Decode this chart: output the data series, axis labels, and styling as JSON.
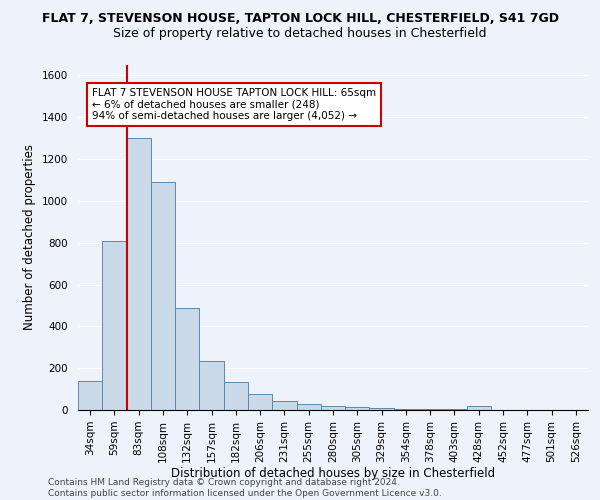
{
  "title_line1": "FLAT 7, STEVENSON HOUSE, TAPTON LOCK HILL, CHESTERFIELD, S41 7GD",
  "title_line2": "Size of property relative to detached houses in Chesterfield",
  "xlabel": "Distribution of detached houses by size in Chesterfield",
  "ylabel": "Number of detached properties",
  "footnote": "Contains HM Land Registry data © Crown copyright and database right 2024.\nContains public sector information licensed under the Open Government Licence v3.0.",
  "categories": [
    "34sqm",
    "59sqm",
    "83sqm",
    "108sqm",
    "132sqm",
    "157sqm",
    "182sqm",
    "206sqm",
    "231sqm",
    "255sqm",
    "280sqm",
    "305sqm",
    "329sqm",
    "354sqm",
    "378sqm",
    "403sqm",
    "428sqm",
    "452sqm",
    "477sqm",
    "501sqm",
    "526sqm"
  ],
  "values": [
    140,
    810,
    1300,
    1090,
    490,
    235,
    135,
    75,
    45,
    30,
    20,
    15,
    10,
    5,
    5,
    5,
    20,
    0,
    0,
    0,
    0
  ],
  "bar_color": "#c9d9e8",
  "bar_edge_color": "#5a8ab0",
  "red_line_x": 1.5,
  "red_line_color": "#cc0000",
  "annotation_text": "FLAT 7 STEVENSON HOUSE TAPTON LOCK HILL: 65sqm\n← 6% of detached houses are smaller (248)\n94% of semi-detached houses are larger (4,052) →",
  "annotation_box_color": "#ffffff",
  "annotation_box_edge": "#cc0000",
  "ylim": [
    0,
    1650
  ],
  "yticks": [
    0,
    200,
    400,
    600,
    800,
    1000,
    1200,
    1400,
    1600
  ],
  "background_color": "#eef2fa",
  "grid_color": "#ffffff",
  "title_fontsize": 9,
  "subtitle_fontsize": 9,
  "axis_label_fontsize": 8.5,
  "tick_fontsize": 7.5,
  "annotation_fontsize": 7.5,
  "footnote_fontsize": 6.5
}
